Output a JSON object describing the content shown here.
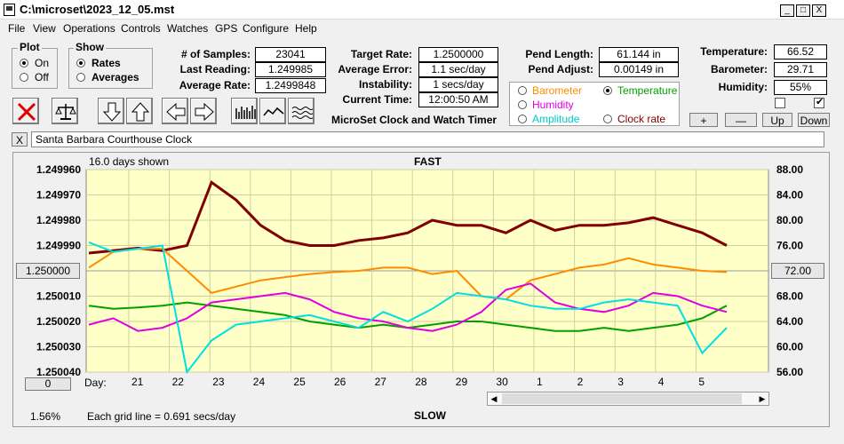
{
  "window": {
    "title": "C:\\microset\\2023_12_05.mst"
  },
  "window_buttons": {
    "min": "_",
    "max": "□",
    "close": "X"
  },
  "menu": [
    "File",
    "View",
    "Operations",
    "Controls",
    "Watches",
    "GPS",
    "Configure",
    "Help"
  ],
  "plot_group": {
    "label": "Plot",
    "options": [
      "On",
      "Off"
    ],
    "selected": "On"
  },
  "show_group": {
    "label": "Show",
    "options": [
      "Rates",
      "Averages"
    ],
    "selected": "Rates"
  },
  "stats": {
    "samples_label": "# of Samples:",
    "samples": "23041",
    "last_label": "Last Reading:",
    "last": "1.249985",
    "avg_rate_label": "Average Rate:",
    "avg_rate": "1.2499848",
    "target_label": "Target Rate:",
    "target": "1.2500000",
    "avg_err_label": "Average Error:",
    "avg_err": "1.1 sec/day",
    "instab_label": "Instability:",
    "instab": "1 secs/day",
    "time_label": "Current Time:",
    "time": "12:00:50 AM",
    "pend_len_label": "Pend Length:",
    "pend_len": "61.144 in",
    "pend_adj_label": "Pend Adjust:",
    "pend_adj": "0.00149 in",
    "temp_label": "Temperature:",
    "temp": "66.52",
    "baro_label": "Barometer:",
    "baro": "29.71",
    "hum_label": "Humidity:",
    "hum": "55%"
  },
  "subtitle": "MicroSet Clock and Watch Timer",
  "channel_group": {
    "barometer": "Barometer",
    "temperature": "Temperature",
    "humidity": "Humidity",
    "amplitude": "Amplitude",
    "clock_rate": "Clock rate",
    "selected": "Temperature"
  },
  "adjust_buttons": {
    "plus": "+",
    "minus": "—",
    "up": "Up",
    "down": "Down"
  },
  "clock_name": "Santa Barbara Courthouse Clock",
  "close_x": "X",
  "chart_header": {
    "days_shown": "16.0 days shown",
    "fast": "FAST",
    "slow": "SLOW"
  },
  "chart_footer": {
    "percent": "1.56%",
    "grid_note": "Each grid line = 0.691 secs/day",
    "zero_button": "0",
    "day_label": "Day:"
  },
  "center_left_button": "1.250000",
  "center_right_button": "72.00",
  "colors": {
    "plot_bg": "#ffffc8",
    "rate": "#800000",
    "barometer": "#ff8c00",
    "temperature": "#00a000",
    "humidity": "#e000e0",
    "amplitude": "#00e0e0"
  },
  "chart_data": {
    "type": "line",
    "y_left_ticks": [
      "1.249960",
      "1.249970",
      "1.249980",
      "1.249990",
      "1.250000",
      "1.250010",
      "1.250020",
      "1.250030",
      "1.250040"
    ],
    "y_right_ticks": [
      "88.00",
      "84.00",
      "80.00",
      "76.00",
      "72.00",
      "68.00",
      "64.00",
      "60.00",
      "56.00"
    ],
    "x_ticks": [
      "21",
      "22",
      "23",
      "24",
      "25",
      "26",
      "27",
      "28",
      "29",
      "30",
      "1",
      "2",
      "3",
      "4",
      "5"
    ],
    "series": [
      {
        "name": "Clock rate",
        "color": "#800000",
        "values": [
          1.249993,
          1.249992,
          1.249991,
          1.249992,
          1.24999,
          1.249965,
          1.249972,
          1.249982,
          1.249988,
          1.24999,
          1.24999,
          1.249988,
          1.249987,
          1.249985,
          1.24998,
          1.249982,
          1.249982,
          1.249985,
          1.24998,
          1.249984,
          1.249982,
          1.249982,
          1.249981,
          1.249979,
          1.249982,
          1.249985,
          1.24999
        ]
      },
      {
        "name": "Barometer",
        "color": "#ff8c00",
        "values": [
          72.5,
          75.0,
          75.5,
          75.5,
          72.0,
          68.5,
          69.5,
          70.5,
          71.0,
          71.5,
          71.8,
          72.0,
          72.5,
          72.5,
          71.5,
          72.0,
          68.0,
          67.5,
          70.5,
          71.5,
          72.5,
          73.0,
          74.0,
          73.0,
          72.5,
          72.0,
          71.8
        ]
      },
      {
        "name": "Temperature",
        "color": "#00a000",
        "values": [
          66.5,
          66.0,
          66.2,
          66.5,
          67.0,
          66.5,
          66.0,
          65.5,
          65.0,
          64.0,
          63.5,
          63.0,
          63.5,
          63.0,
          63.5,
          64.0,
          64.0,
          63.5,
          63.0,
          62.5,
          62.5,
          63.0,
          62.5,
          63.0,
          63.5,
          64.5,
          66.5
        ]
      },
      {
        "name": "Humidity",
        "color": "#e000e0",
        "values": [
          63.5,
          64.5,
          62.5,
          63.0,
          64.5,
          67.0,
          67.5,
          68.0,
          68.5,
          67.5,
          65.5,
          64.5,
          64.0,
          63.0,
          62.5,
          63.5,
          65.5,
          69.0,
          70.0,
          67.0,
          66.0,
          65.5,
          66.5,
          68.5,
          68.0,
          66.5,
          65.5
        ]
      },
      {
        "name": "Amplitude",
        "color": "#00e0e0",
        "values": [
          76.5,
          75.0,
          75.5,
          76.0,
          56.0,
          61.0,
          63.5,
          64.0,
          64.5,
          65.0,
          64.0,
          63.0,
          65.5,
          64.0,
          66.0,
          68.5,
          68.0,
          67.5,
          66.5,
          66.0,
          66.0,
          67.0,
          67.5,
          67.0,
          66.5,
          59.0,
          63.0
        ]
      }
    ]
  }
}
